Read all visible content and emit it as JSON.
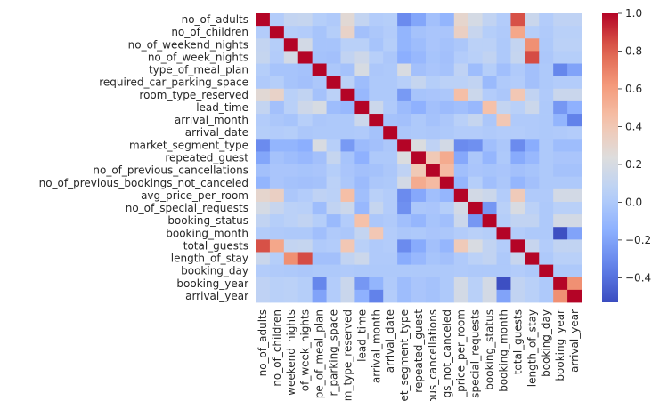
{
  "chart_data": {
    "type": "heatmap",
    "title": "",
    "xlabel": "",
    "ylabel": "",
    "variables": [
      "no_of_adults",
      "no_of_children",
      "no_of_weekend_nights",
      "no_of_week_nights",
      "type_of_meal_plan",
      "required_car_parking_space",
      "room_type_reserved",
      "lead_time",
      "arrival_month",
      "arrival_date",
      "market_segment_type",
      "repeated_guest",
      "no_of_previous_cancellations",
      "no_of_previous_bookings_not_canceled",
      "avg_price_per_room",
      "no_of_special_requests",
      "booking_status",
      "booking_month",
      "total_guests",
      "length_of_stay",
      "booking_day",
      "booking_year",
      "arrival_year"
    ],
    "x_tick_labels": [
      "no_of_adults",
      "no_of_children",
      "_weekend_nights",
      "of_week_nights",
      "pe_of_meal_plan",
      "r_parking_space",
      "m_type_reserved",
      "lead_time",
      "arrival_month",
      "arrival_date",
      "et_segment_type",
      "repeated_guest",
      "ous_cancellations",
      "gs_not_canceled",
      "_price_per_room",
      "special_requests",
      "booking_status",
      "booking_month",
      "total_guests",
      "length_of_stay",
      "booking_day",
      "booking_year",
      "arrival_year"
    ],
    "vmin": -0.53,
    "vmax": 1.0,
    "colormap": "coolwarm",
    "colorbar_ticks": [
      1.0,
      0.8,
      0.6,
      0.4,
      0.2,
      0.0,
      -0.2,
      -0.4
    ],
    "colorbar_tick_labels": [
      "1.0",
      "0.8",
      "0.6",
      "0.4",
      "0.2",
      "0.0",
      "−0.2",
      "−0.4"
    ],
    "values": [
      [
        1.0,
        0.02,
        0.1,
        0.11,
        0.03,
        0.01,
        0.27,
        0.1,
        0.02,
        0.03,
        -0.3,
        -0.19,
        -0.05,
        -0.12,
        0.3,
        0.19,
        0.09,
        0.02,
        0.84,
        0.13,
        0.02,
        0.08,
        0.08
      ],
      [
        0.02,
        1.0,
        0.03,
        0.02,
        -0.03,
        0.03,
        0.32,
        -0.05,
        -0.01,
        0.02,
        -0.12,
        -0.04,
        -0.02,
        -0.02,
        0.34,
        0.12,
        0.03,
        0.01,
        0.56,
        0.03,
        0.01,
        0.05,
        0.05
      ],
      [
        0.1,
        0.03,
        1.0,
        0.18,
        -0.03,
        -0.03,
        0.05,
        0.05,
        -0.03,
        0.03,
        -0.12,
        -0.07,
        -0.02,
        -0.04,
        -0.01,
        0.06,
        0.06,
        0.0,
        0.1,
        0.65,
        0.0,
        0.06,
        0.06
      ],
      [
        0.11,
        0.02,
        0.18,
        1.0,
        -0.04,
        -0.05,
        0.09,
        0.15,
        0.04,
        -0.01,
        -0.15,
        -0.1,
        -0.03,
        -0.05,
        0.02,
        0.05,
        0.09,
        0.0,
        0.11,
        0.85,
        -0.01,
        0.03,
        0.03
      ],
      [
        0.03,
        -0.03,
        -0.03,
        -0.04,
        1.0,
        -0.01,
        -0.04,
        0.2,
        -0.01,
        0.0,
        0.21,
        -0.05,
        -0.02,
        -0.04,
        0.08,
        -0.07,
        0.03,
        -0.06,
        0.01,
        -0.05,
        0.0,
        -0.32,
        -0.2
      ],
      [
        0.01,
        0.03,
        -0.03,
        -0.05,
        -0.01,
        1.0,
        0.06,
        -0.07,
        0.0,
        0.0,
        0.04,
        0.11,
        0.03,
        0.06,
        0.06,
        0.09,
        -0.09,
        0.01,
        0.02,
        -0.05,
        0.0,
        0.02,
        0.02
      ],
      [
        0.27,
        0.32,
        0.05,
        0.09,
        -0.04,
        0.06,
        1.0,
        -0.1,
        0.0,
        0.0,
        -0.24,
        -0.03,
        -0.02,
        -0.01,
        0.45,
        0.14,
        0.02,
        -0.01,
        0.4,
        0.09,
        0.01,
        0.13,
        0.13
      ],
      [
        0.1,
        -0.05,
        0.05,
        0.15,
        0.2,
        -0.07,
        -0.1,
        1.0,
        0.14,
        0.01,
        -0.08,
        -0.14,
        -0.05,
        -0.08,
        -0.06,
        -0.1,
        0.44,
        0.1,
        0.05,
        0.14,
        0.0,
        -0.25,
        -0.14
      ],
      [
        0.02,
        -0.01,
        -0.03,
        0.04,
        -0.01,
        0.0,
        0.0,
        0.14,
        1.0,
        -0.04,
        -0.05,
        0.0,
        -0.04,
        -0.01,
        0.05,
        0.11,
        -0.01,
        0.4,
        0.01,
        0.01,
        0.0,
        -0.12,
        -0.34
      ],
      [
        0.03,
        0.02,
        0.03,
        -0.01,
        0.0,
        0.0,
        0.0,
        0.01,
        -0.04,
        1.0,
        -0.01,
        0.0,
        -0.01,
        0.0,
        0.02,
        0.02,
        0.01,
        0.02,
        0.02,
        0.01,
        0.0,
        0.01,
        0.02
      ],
      [
        -0.3,
        -0.12,
        -0.12,
        -0.15,
        0.21,
        0.04,
        -0.24,
        -0.08,
        -0.05,
        -0.01,
        1.0,
        0.22,
        0.08,
        0.18,
        -0.3,
        -0.28,
        -0.06,
        -0.01,
        -0.3,
        -0.16,
        0.0,
        -0.07,
        -0.07
      ],
      [
        -0.19,
        -0.04,
        -0.07,
        -0.1,
        -0.05,
        0.11,
        -0.03,
        -0.14,
        0.0,
        0.0,
        0.22,
        1.0,
        0.39,
        0.54,
        -0.18,
        -0.01,
        -0.11,
        0.0,
        -0.17,
        -0.1,
        0.0,
        -0.02,
        -0.02
      ],
      [
        -0.05,
        -0.02,
        -0.02,
        -0.03,
        -0.02,
        0.03,
        -0.02,
        -0.05,
        -0.04,
        -0.01,
        0.08,
        0.39,
        1.0,
        0.47,
        -0.06,
        -0.02,
        -0.03,
        -0.02,
        -0.05,
        -0.03,
        0.0,
        -0.04,
        -0.04
      ],
      [
        -0.12,
        -0.02,
        -0.04,
        -0.05,
        -0.04,
        0.06,
        -0.01,
        -0.08,
        -0.01,
        0.0,
        0.18,
        0.54,
        0.47,
        1.0,
        -0.11,
        0.03,
        -0.06,
        -0.01,
        -0.11,
        -0.05,
        0.0,
        0.0,
        0.0
      ],
      [
        0.3,
        0.34,
        -0.01,
        0.02,
        0.08,
        0.06,
        0.45,
        -0.06,
        0.05,
        0.02,
        -0.3,
        -0.18,
        -0.06,
        -0.11,
        1.0,
        0.18,
        0.14,
        0.02,
        0.38,
        0.01,
        0.01,
        0.18,
        0.18
      ],
      [
        0.19,
        0.12,
        0.06,
        0.05,
        -0.07,
        0.09,
        0.14,
        -0.1,
        0.11,
        0.02,
        -0.28,
        -0.01,
        -0.02,
        0.03,
        0.18,
        1.0,
        -0.25,
        0.05,
        0.21,
        0.06,
        0.0,
        0.05,
        0.05
      ],
      [
        0.09,
        0.03,
        0.06,
        0.09,
        0.03,
        -0.09,
        0.02,
        0.44,
        -0.01,
        0.01,
        -0.06,
        -0.11,
        -0.03,
        -0.06,
        0.14,
        -0.25,
        1.0,
        0.03,
        0.09,
        0.09,
        0.0,
        0.18,
        0.18
      ],
      [
        0.02,
        0.01,
        0.0,
        0.0,
        -0.06,
        0.01,
        -0.01,
        0.1,
        0.4,
        0.02,
        -0.01,
        0.0,
        -0.02,
        -0.01,
        0.02,
        0.05,
        0.03,
        1.0,
        0.02,
        0.0,
        0.0,
        -0.52,
        -0.2
      ],
      [
        0.84,
        0.56,
        0.1,
        0.11,
        0.01,
        0.02,
        0.4,
        0.05,
        0.01,
        0.02,
        -0.3,
        -0.17,
        -0.05,
        -0.11,
        0.38,
        0.21,
        0.09,
        0.02,
        1.0,
        0.12,
        0.02,
        0.09,
        0.09
      ],
      [
        0.13,
        0.03,
        0.65,
        0.85,
        -0.05,
        -0.05,
        0.09,
        0.14,
        0.01,
        0.01,
        -0.16,
        -0.1,
        -0.03,
        -0.05,
        0.01,
        0.06,
        0.09,
        0.0,
        0.12,
        1.0,
        0.0,
        0.05,
        0.05
      ],
      [
        0.02,
        0.01,
        0.0,
        -0.01,
        0.0,
        0.0,
        0.01,
        0.0,
        0.0,
        0.0,
        0.0,
        0.0,
        0.0,
        0.0,
        0.01,
        0.0,
        0.0,
        0.0,
        0.02,
        0.0,
        1.0,
        0.0,
        0.0
      ],
      [
        0.08,
        0.05,
        0.06,
        0.03,
        -0.32,
        0.02,
        0.13,
        -0.25,
        -0.12,
        0.01,
        -0.07,
        -0.02,
        -0.04,
        0.0,
        0.18,
        0.05,
        0.18,
        -0.52,
        0.09,
        0.05,
        0.0,
        1.0,
        0.65
      ],
      [
        0.08,
        0.05,
        0.06,
        0.03,
        -0.2,
        0.02,
        0.13,
        -0.14,
        -0.34,
        0.02,
        -0.07,
        -0.02,
        -0.04,
        0.0,
        0.18,
        0.05,
        0.18,
        -0.2,
        0.09,
        0.05,
        0.0,
        0.65,
        1.0
      ]
    ]
  }
}
